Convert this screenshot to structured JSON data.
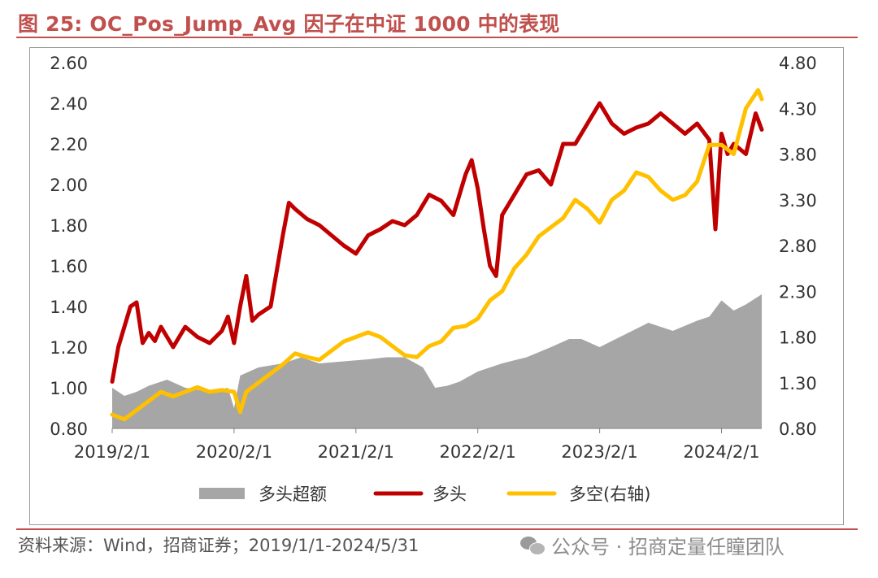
{
  "header": {
    "title": "图 25:  OC_Pos_Jump_Avg 因子在中证 1000 中的表现"
  },
  "footer": {
    "source": "资料来源：Wind，招商证券；2019/1/1-2024/5/31",
    "watermark": "公众号 · 招商定量任瞳团队"
  },
  "colors": {
    "long": "#C00000",
    "spread": "#FFC000",
    "excess": "#A6A6A6",
    "accent": "#C0504D"
  },
  "chart_data": {
    "type": "line",
    "x_ticks": [
      "2019/2/1",
      "2020/2/1",
      "2021/2/1",
      "2022/2/1",
      "2023/2/1",
      "2024/2/1"
    ],
    "x_tick_years": [
      0.0,
      1.0,
      2.0,
      3.0,
      4.0,
      5.0
    ],
    "x_range_years": [
      0.0,
      5.33
    ],
    "y_left": {
      "ticks": [
        "2.60",
        "2.40",
        "2.20",
        "2.00",
        "1.80",
        "1.60",
        "1.40",
        "1.20",
        "1.00",
        "0.80"
      ],
      "min": 0.8,
      "max": 2.6
    },
    "y_right": {
      "ticks": [
        "4.80",
        "4.30",
        "3.80",
        "3.30",
        "2.80",
        "2.30",
        "1.80",
        "1.30",
        "0.80"
      ],
      "min": 0.8,
      "max": 4.8
    },
    "legend_position": "bottom",
    "series": [
      {
        "name": "多头超额",
        "type": "area",
        "axis": "left",
        "color": "#A6A6A6",
        "x": [
          0.0,
          0.1,
          0.2,
          0.3,
          0.45,
          0.6,
          0.8,
          0.95,
          1.0,
          1.05,
          1.2,
          1.4,
          1.55,
          1.7,
          1.9,
          2.1,
          2.25,
          2.4,
          2.55,
          2.65,
          2.75,
          2.85,
          3.0,
          3.2,
          3.4,
          3.6,
          3.75,
          3.85,
          4.0,
          4.2,
          4.4,
          4.6,
          4.8,
          4.9,
          5.0,
          5.1,
          5.2,
          5.33
        ],
        "values": [
          1.0,
          0.96,
          0.98,
          1.01,
          1.04,
          1.0,
          0.98,
          1.0,
          0.9,
          1.06,
          1.1,
          1.12,
          1.15,
          1.12,
          1.13,
          1.14,
          1.15,
          1.15,
          1.1,
          1.0,
          1.01,
          1.03,
          1.08,
          1.12,
          1.15,
          1.2,
          1.24,
          1.24,
          1.2,
          1.26,
          1.32,
          1.28,
          1.33,
          1.35,
          1.43,
          1.38,
          1.41,
          1.46
        ]
      },
      {
        "name": "多头",
        "type": "line",
        "axis": "left",
        "color": "#C00000",
        "x": [
          0.0,
          0.05,
          0.1,
          0.15,
          0.2,
          0.25,
          0.3,
          0.35,
          0.4,
          0.5,
          0.6,
          0.7,
          0.8,
          0.9,
          0.95,
          1.0,
          1.05,
          1.1,
          1.15,
          1.2,
          1.3,
          1.4,
          1.45,
          1.5,
          1.6,
          1.7,
          1.8,
          1.9,
          2.0,
          2.1,
          2.2,
          2.3,
          2.4,
          2.5,
          2.6,
          2.7,
          2.8,
          2.9,
          2.95,
          3.0,
          3.05,
          3.1,
          3.15,
          3.2,
          3.3,
          3.4,
          3.5,
          3.6,
          3.7,
          3.8,
          3.9,
          4.0,
          4.1,
          4.2,
          4.3,
          4.4,
          4.5,
          4.6,
          4.7,
          4.8,
          4.9,
          4.95,
          5.0,
          5.05,
          5.1,
          5.2,
          5.28,
          5.33
        ],
        "values": [
          1.03,
          1.2,
          1.3,
          1.4,
          1.42,
          1.22,
          1.27,
          1.23,
          1.3,
          1.2,
          1.3,
          1.25,
          1.22,
          1.28,
          1.35,
          1.22,
          1.4,
          1.55,
          1.33,
          1.36,
          1.4,
          1.75,
          1.91,
          1.88,
          1.83,
          1.8,
          1.75,
          1.7,
          1.66,
          1.75,
          1.78,
          1.82,
          1.8,
          1.85,
          1.95,
          1.92,
          1.85,
          2.05,
          2.12,
          1.98,
          1.78,
          1.6,
          1.55,
          1.85,
          1.95,
          2.05,
          2.07,
          2.0,
          2.2,
          2.2,
          2.3,
          2.4,
          2.3,
          2.25,
          2.28,
          2.3,
          2.35,
          2.3,
          2.25,
          2.3,
          2.22,
          1.78,
          2.25,
          2.15,
          2.2,
          2.15,
          2.35,
          2.27
        ]
      },
      {
        "name": "多空(右轴)",
        "type": "line",
        "axis": "right",
        "color": "#FFC000",
        "x": [
          0.0,
          0.1,
          0.2,
          0.3,
          0.4,
          0.5,
          0.6,
          0.7,
          0.8,
          0.9,
          1.0,
          1.05,
          1.1,
          1.2,
          1.3,
          1.4,
          1.5,
          1.6,
          1.7,
          1.8,
          1.9,
          2.0,
          2.1,
          2.2,
          2.3,
          2.4,
          2.5,
          2.6,
          2.7,
          2.8,
          2.9,
          3.0,
          3.1,
          3.2,
          3.3,
          3.4,
          3.5,
          3.6,
          3.7,
          3.8,
          3.9,
          4.0,
          4.1,
          4.2,
          4.3,
          4.4,
          4.5,
          4.6,
          4.7,
          4.8,
          4.9,
          5.0,
          5.1,
          5.2,
          5.3,
          5.33
        ],
        "values": [
          0.95,
          0.9,
          1.0,
          1.1,
          1.2,
          1.15,
          1.2,
          1.25,
          1.2,
          1.22,
          1.2,
          0.98,
          1.2,
          1.3,
          1.4,
          1.5,
          1.62,
          1.58,
          1.55,
          1.65,
          1.75,
          1.8,
          1.85,
          1.8,
          1.7,
          1.6,
          1.58,
          1.7,
          1.75,
          1.9,
          1.92,
          2.0,
          2.2,
          2.3,
          2.55,
          2.7,
          2.9,
          3.0,
          3.1,
          3.3,
          3.2,
          3.05,
          3.3,
          3.4,
          3.6,
          3.55,
          3.4,
          3.3,
          3.35,
          3.5,
          3.9,
          3.9,
          3.8,
          4.3,
          4.5,
          4.4
        ]
      }
    ]
  }
}
